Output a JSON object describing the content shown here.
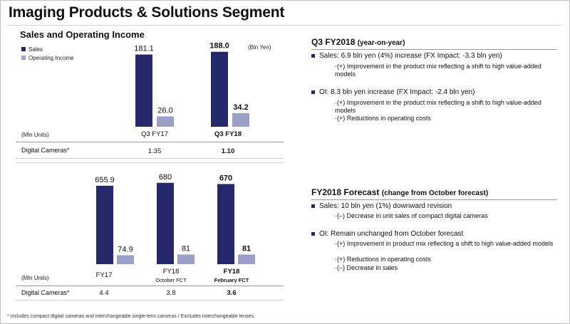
{
  "page": {
    "title": "Imaging Products & Solutions Segment",
    "subtitle": "Sales and Operating Income",
    "legend": [
      {
        "label": "Sales",
        "color": "#25296b"
      },
      {
        "label": "Operating Income",
        "color": "#9aa0c8"
      }
    ],
    "unit_bln_yen": "(Bln Yen)",
    "footnote": "* Includes compact digital cameras and interchangeable single-lens cameras / Excludes interchangeable lenses."
  },
  "chart_data": [
    {
      "type": "bar",
      "categories": [
        "Q3 FY17",
        "Q3 FY18"
      ],
      "series": [
        {
          "name": "Sales",
          "values": [
            181.1,
            188.0
          ],
          "labels": [
            "181.1",
            "188.0"
          ],
          "color": "#25296b"
        },
        {
          "name": "Operating Income",
          "values": [
            26.0,
            34.2
          ],
          "labels": [
            "26.0",
            "34.2"
          ],
          "color": "#9aa0c8"
        }
      ],
      "bold_category_index": 1,
      "table": {
        "unit_label": "(Mln Units)",
        "row_label": "Digital Cameras*",
        "values": [
          "1.35",
          "1.10"
        ]
      }
    },
    {
      "type": "bar",
      "categories": [
        "FY17",
        "FY18",
        "FY18"
      ],
      "category_sublabels": [
        "",
        "October FCT",
        "February FCT"
      ],
      "series": [
        {
          "name": "Sales",
          "values": [
            655.9,
            680,
            670
          ],
          "labels": [
            "655.9",
            "680",
            "670"
          ],
          "color": "#25296b"
        },
        {
          "name": "Operating Income",
          "values": [
            74.9,
            81,
            81
          ],
          "labels": [
            "74.9",
            "81",
            "81"
          ],
          "color": "#9aa0c8"
        }
      ],
      "bold_category_index": 2,
      "table": {
        "unit_label": "(Mln Units)",
        "row_label": "Digital Cameras*",
        "values": [
          "4.4",
          "3.8",
          "3.6"
        ]
      }
    }
  ],
  "right": {
    "q3": {
      "heading": "Q3 FY2018",
      "heading_paren": "(year-on-year)",
      "bullets": [
        {
          "text": "Sales: 6.9 bln yen (4%) increase (FX Impact: -3.3 bln yen)",
          "subs": [
            "·(+) Improvement in the product mix reflecting a shift to high value-added models"
          ]
        },
        {
          "text": "OI: 8.3 bln yen increase (FX Impact: -2.4 bln yen)",
          "subs": [
            "·(+) Improvement in the product mix reflecting a shift to high value-added models",
            "·(+) Reductions in operating costs"
          ]
        }
      ]
    },
    "fy": {
      "heading": "FY2018 Forecast",
      "heading_paren": "(change from October forecast)",
      "bullets": [
        {
          "text": "Sales: 10 bln yen (1%) downward revision",
          "subs": [
            "·(–) Decrease in unit sales of compact digital cameras"
          ]
        },
        {
          "text": "OI: Remain unchanged from October forecast",
          "subs": [
            "·(+) Improvement in product mix reflecting a shift to high value-added models",
            "·(+) Reductions in operating costs",
            "·(–) Decrease in sales"
          ]
        }
      ]
    }
  }
}
